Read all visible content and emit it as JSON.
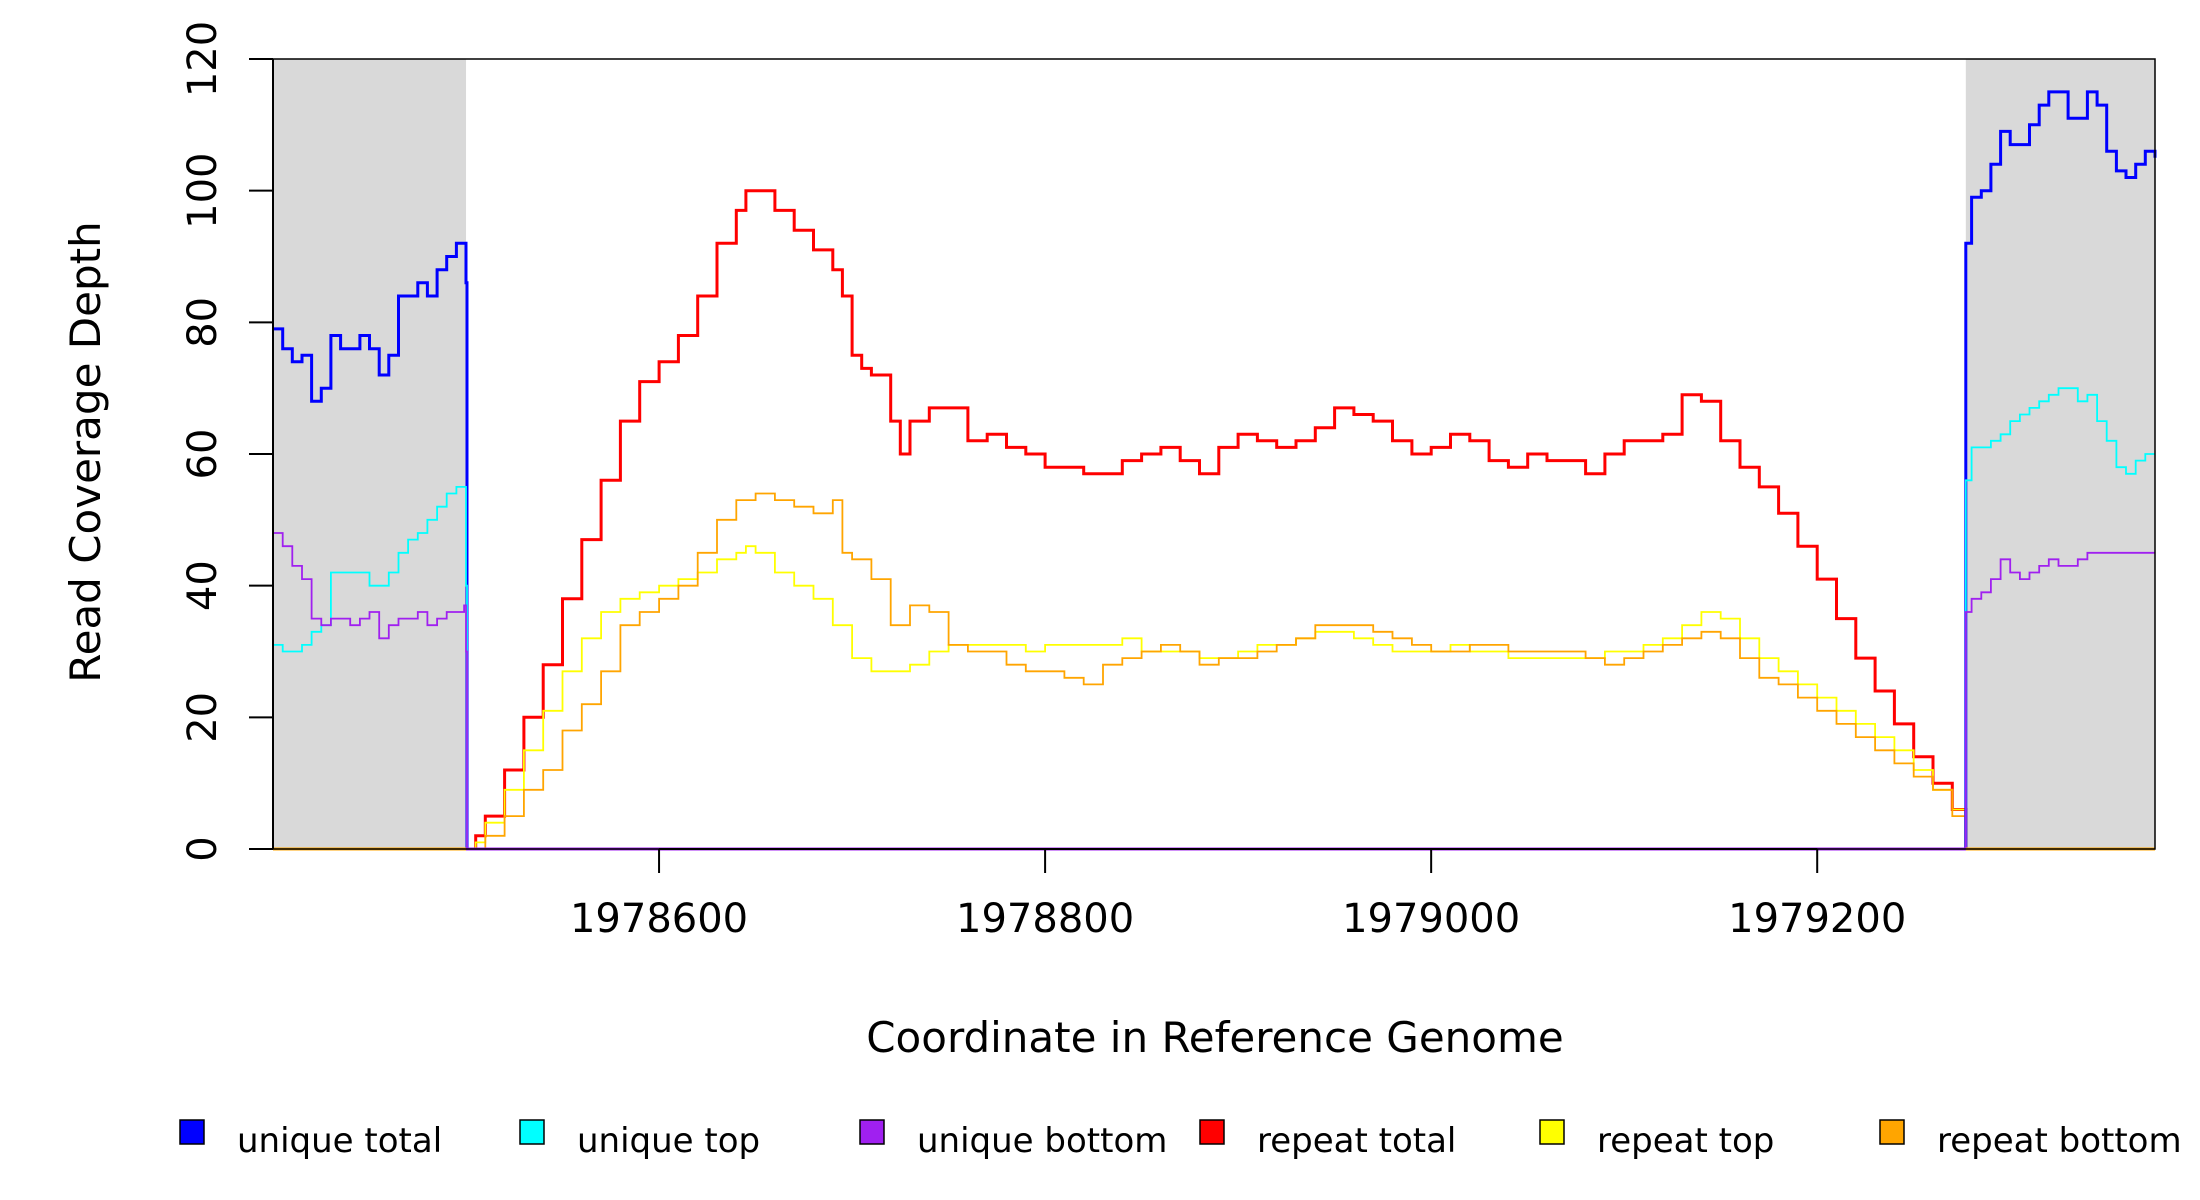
{
  "chart_data": {
    "type": "line",
    "title": "",
    "xlabel": "Coordinate in Reference Genome",
    "ylabel": "Read Coverage Depth",
    "xlim": [
      1978400,
      1979375
    ],
    "ylim": [
      0,
      120
    ],
    "x_ticks": [
      1978600,
      1978800,
      1979000,
      1979200
    ],
    "x_tick_labels": [
      "1978600",
      "1978800",
      "1979000",
      "1979200"
    ],
    "y_ticks": [
      0,
      20,
      40,
      60,
      80,
      100,
      120
    ],
    "y_tick_labels": [
      "0",
      "20",
      "40",
      "60",
      "80",
      "100",
      "120"
    ],
    "flank_regions": [
      [
        1978400,
        1978500
      ],
      [
        1979277,
        1979375
      ]
    ],
    "flank_color": "#d9d9d9",
    "series": [
      {
        "name": "unique total",
        "color": "#0000ff",
        "x": [
          1978400,
          1978405,
          1978410,
          1978415,
          1978420,
          1978425,
          1978430,
          1978435,
          1978440,
          1978445,
          1978450,
          1978455,
          1978460,
          1978465,
          1978470,
          1978475,
          1978480,
          1978485,
          1978490,
          1978495,
          1978499,
          1978500,
          1978500.5,
          1979276.5,
          1979277,
          1979280,
          1979285,
          1979290,
          1979295,
          1979300,
          1979305,
          1979310,
          1979315,
          1979320,
          1979325,
          1979330,
          1979335,
          1979340,
          1979345,
          1979350,
          1979355,
          1979360,
          1979365,
          1979370,
          1979375
        ],
        "y": [
          79,
          76,
          74,
          75,
          68,
          70,
          78,
          76,
          76,
          78,
          76,
          72,
          75,
          84,
          84,
          86,
          84,
          88,
          90,
          92,
          92,
          86,
          0,
          0,
          92,
          99,
          100,
          104,
          109,
          107,
          107,
          110,
          113,
          115,
          115,
          111,
          111,
          115,
          113,
          106,
          103,
          102,
          104,
          106,
          105
        ]
      },
      {
        "name": "unique top",
        "color": "#00ffff",
        "x": [
          1978400,
          1978405,
          1978410,
          1978415,
          1978420,
          1978425,
          1978430,
          1978435,
          1978440,
          1978445,
          1978450,
          1978455,
          1978460,
          1978465,
          1978470,
          1978475,
          1978480,
          1978485,
          1978490,
          1978495,
          1978499,
          1978500,
          1978500.5,
          1979276.5,
          1979277,
          1979280,
          1979285,
          1979290,
          1979295,
          1979300,
          1979305,
          1979310,
          1979315,
          1979320,
          1979325,
          1979330,
          1979335,
          1979340,
          1979345,
          1979350,
          1979355,
          1979360,
          1979365,
          1979370,
          1979375
        ],
        "y": [
          31,
          30,
          30,
          31,
          33,
          34,
          42,
          42,
          42,
          42,
          40,
          40,
          42,
          45,
          47,
          48,
          50,
          52,
          54,
          55,
          55,
          40,
          0,
          0,
          56,
          61,
          61,
          62,
          63,
          65,
          66,
          67,
          68,
          69,
          70,
          70,
          68,
          69,
          65,
          62,
          58,
          57,
          59,
          60,
          60
        ]
      },
      {
        "name": "unique bottom",
        "color": "#a020f0",
        "x": [
          1978400,
          1978405,
          1978410,
          1978415,
          1978420,
          1978425,
          1978430,
          1978435,
          1978440,
          1978445,
          1978450,
          1978455,
          1978460,
          1978465,
          1978470,
          1978475,
          1978480,
          1978485,
          1978490,
          1978495,
          1978499,
          1978500,
          1978500.5,
          1979276.5,
          1979277,
          1979280,
          1979285,
          1979290,
          1979295,
          1979300,
          1979305,
          1979310,
          1979315,
          1979320,
          1979325,
          1979330,
          1979335,
          1979340,
          1979345,
          1979350,
          1979355,
          1979360,
          1979365,
          1979370,
          1979375
        ],
        "y": [
          48,
          46,
          43,
          41,
          35,
          34,
          35,
          35,
          34,
          35,
          36,
          32,
          34,
          35,
          35,
          36,
          34,
          35,
          36,
          36,
          37,
          30,
          0,
          0,
          36,
          38,
          39,
          41,
          44,
          42,
          41,
          42,
          43,
          44,
          43,
          43,
          44,
          45,
          45,
          45,
          45,
          45,
          45,
          45,
          45
        ]
      },
      {
        "name": "repeat total",
        "color": "#ff0000",
        "x": [
          1978500,
          1978505,
          1978510,
          1978520,
          1978530,
          1978540,
          1978550,
          1978560,
          1978570,
          1978580,
          1978590,
          1978600,
          1978610,
          1978620,
          1978630,
          1978640,
          1978645,
          1978650,
          1978660,
          1978670,
          1978680,
          1978690,
          1978695,
          1978700,
          1978705,
          1978710,
          1978720,
          1978725,
          1978730,
          1978740,
          1978750,
          1978760,
          1978770,
          1978780,
          1978790,
          1978800,
          1978810,
          1978820,
          1978830,
          1978840,
          1978850,
          1978860,
          1978870,
          1978880,
          1978890,
          1978900,
          1978910,
          1978920,
          1978930,
          1978940,
          1978950,
          1978960,
          1978970,
          1978980,
          1978990,
          1979000,
          1979010,
          1979020,
          1979030,
          1979040,
          1979050,
          1979060,
          1979070,
          1979080,
          1979090,
          1979100,
          1979110,
          1979120,
          1979130,
          1979140,
          1979150,
          1979160,
          1979170,
          1979180,
          1979190,
          1979200,
          1979210,
          1979220,
          1979230,
          1979240,
          1979250,
          1979260,
          1979270,
          1979277
        ],
        "y": [
          0,
          2,
          5,
          12,
          20,
          28,
          38,
          47,
          56,
          65,
          71,
          74,
          78,
          84,
          92,
          97,
          100,
          100,
          97,
          94,
          91,
          88,
          84,
          75,
          73,
          72,
          65,
          60,
          65,
          67,
          67,
          62,
          63,
          61,
          60,
          58,
          58,
          57,
          57,
          59,
          60,
          61,
          59,
          57,
          61,
          63,
          62,
          61,
          62,
          64,
          67,
          66,
          65,
          62,
          60,
          61,
          63,
          62,
          59,
          58,
          60,
          59,
          59,
          57,
          60,
          62,
          62,
          63,
          69,
          68,
          62,
          58,
          55,
          51,
          46,
          41,
          35,
          29,
          24,
          19,
          14,
          10,
          6,
          0
        ]
      },
      {
        "name": "repeat top",
        "color": "#ffff00",
        "x": [
          1978500,
          1978505,
          1978510,
          1978520,
          1978530,
          1978540,
          1978550,
          1978560,
          1978570,
          1978580,
          1978590,
          1978600,
          1978610,
          1978620,
          1978630,
          1978640,
          1978645,
          1978650,
          1978660,
          1978670,
          1978680,
          1978690,
          1978700,
          1978710,
          1978720,
          1978730,
          1978740,
          1978750,
          1978760,
          1978770,
          1978780,
          1978790,
          1978800,
          1978810,
          1978820,
          1978830,
          1978840,
          1978850,
          1978860,
          1978870,
          1978880,
          1978890,
          1978900,
          1978910,
          1978920,
          1978930,
          1978940,
          1978950,
          1978960,
          1978970,
          1978980,
          1978990,
          1979000,
          1979010,
          1979020,
          1979030,
          1979040,
          1979050,
          1979060,
          1979070,
          1979080,
          1979090,
          1979100,
          1979110,
          1979120,
          1979130,
          1979140,
          1979150,
          1979160,
          1979170,
          1979180,
          1979190,
          1979200,
          1979210,
          1979220,
          1979230,
          1979240,
          1979250,
          1979260,
          1979270,
          1979277
        ],
        "y": [
          0,
          1,
          4,
          9,
          15,
          21,
          27,
          32,
          36,
          38,
          39,
          40,
          41,
          42,
          44,
          45,
          46,
          45,
          42,
          40,
          38,
          34,
          29,
          27,
          27,
          28,
          30,
          31,
          31,
          31,
          31,
          30,
          31,
          31,
          31,
          31,
          32,
          30,
          30,
          30,
          29,
          29,
          30,
          31,
          31,
          32,
          33,
          33,
          32,
          31,
          30,
          30,
          30,
          31,
          30,
          30,
          29,
          29,
          29,
          29,
          29,
          30,
          30,
          31,
          32,
          34,
          36,
          35,
          32,
          29,
          27,
          25,
          23,
          21,
          19,
          17,
          15,
          12,
          9,
          6,
          0
        ]
      },
      {
        "name": "repeat bottom",
        "color": "#ffa500",
        "x": [
          1978500,
          1978505,
          1978510,
          1978520,
          1978530,
          1978540,
          1978550,
          1978560,
          1978570,
          1978580,
          1978590,
          1978600,
          1978610,
          1978620,
          1978630,
          1978640,
          1978650,
          1978660,
          1978670,
          1978680,
          1978690,
          1978695,
          1978700,
          1978710,
          1978720,
          1978730,
          1978740,
          1978750,
          1978760,
          1978770,
          1978780,
          1978790,
          1978800,
          1978810,
          1978820,
          1978830,
          1978840,
          1978850,
          1978860,
          1978870,
          1978880,
          1978890,
          1978900,
          1978910,
          1978920,
          1978930,
          1978940,
          1978950,
          1978960,
          1978970,
          1978980,
          1978990,
          1979000,
          1979010,
          1979020,
          1979030,
          1979040,
          1979050,
          1979060,
          1979070,
          1979080,
          1979090,
          1979100,
          1979110,
          1979120,
          1979130,
          1979140,
          1979150,
          1979160,
          1979170,
          1979180,
          1979190,
          1979200,
          1979210,
          1979220,
          1979230,
          1979240,
          1979250,
          1979260,
          1979270,
          1979277
        ],
        "y": [
          0,
          0,
          2,
          5,
          9,
          12,
          18,
          22,
          27,
          34,
          36,
          38,
          40,
          45,
          50,
          53,
          54,
          53,
          52,
          51,
          53,
          45,
          44,
          41,
          34,
          37,
          36,
          31,
          30,
          30,
          28,
          27,
          27,
          26,
          25,
          28,
          29,
          30,
          31,
          30,
          28,
          29,
          29,
          30,
          31,
          32,
          34,
          34,
          34,
          33,
          32,
          31,
          30,
          30,
          31,
          31,
          30,
          30,
          30,
          30,
          29,
          28,
          29,
          30,
          31,
          32,
          33,
          32,
          29,
          26,
          25,
          23,
          21,
          19,
          17,
          15,
          13,
          11,
          9,
          5,
          0
        ]
      }
    ],
    "legend": {
      "position": "bottom",
      "entries": [
        {
          "label": "unique total",
          "color": "#0000ff"
        },
        {
          "label": "unique top",
          "color": "#00ffff"
        },
        {
          "label": "unique bottom",
          "color": "#a020f0"
        },
        {
          "label": "repeat total",
          "color": "#ff0000"
        },
        {
          "label": "repeat top",
          "color": "#ffff00"
        },
        {
          "label": "repeat bottom",
          "color": "#ffa500"
        }
      ]
    }
  }
}
